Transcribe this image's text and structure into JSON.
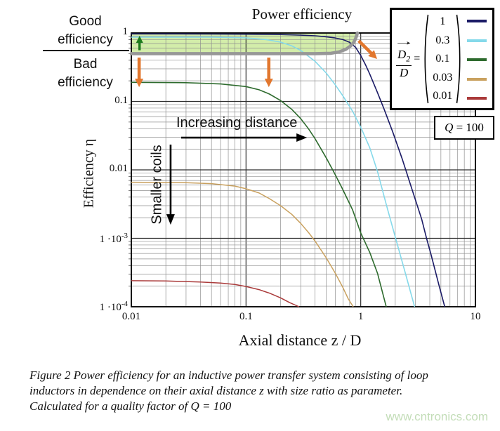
{
  "page": {
    "background": "#ffffff"
  },
  "chart_data": {
    "type": "line",
    "title": "Power efficiency",
    "xlabel": "Axial distance z / D",
    "ylabel": "Efficiency η",
    "xscale": "log",
    "yscale": "log",
    "xlim": [
      0.01,
      10
    ],
    "ylim": [
      0.0001,
      1
    ],
    "grid": true,
    "legend_position": "top-right",
    "x_ticks": [
      {
        "v": 0.01,
        "base": "0.01"
      },
      {
        "v": 0.1,
        "base": "0.1"
      },
      {
        "v": 1,
        "base": "1"
      },
      {
        "v": 10,
        "base": "10"
      }
    ],
    "y_ticks": [
      {
        "v": 1,
        "base": "1"
      },
      {
        "v": 0.1,
        "base": "0.1"
      },
      {
        "v": 0.01,
        "base": "0.01"
      },
      {
        "v": 0.001,
        "base": "1 ·10",
        "sup": "-3"
      },
      {
        "v": 0.0001,
        "base": "1 ·10",
        "sup": "-4"
      }
    ],
    "series": [
      {
        "name": "1",
        "color": "#1b1b66",
        "width": 1.6,
        "points": [
          [
            0.01,
            0.97
          ],
          [
            0.02,
            0.97
          ],
          [
            0.05,
            0.965
          ],
          [
            0.1,
            0.96
          ],
          [
            0.15,
            0.955
          ],
          [
            0.2,
            0.95
          ],
          [
            0.3,
            0.93
          ],
          [
            0.4,
            0.91
          ],
          [
            0.5,
            0.88
          ],
          [
            0.6,
            0.845
          ],
          [
            0.7,
            0.8
          ],
          [
            0.8,
            0.73
          ],
          [
            0.9,
            0.62
          ],
          [
            1.0,
            0.47
          ],
          [
            1.1,
            0.345
          ],
          [
            1.2,
            0.25
          ],
          [
            1.4,
            0.135
          ],
          [
            1.6,
            0.077
          ],
          [
            1.9,
            0.036
          ],
          [
            2.3,
            0.0145
          ],
          [
            2.8,
            0.0052
          ],
          [
            3.4,
            0.0019
          ],
          [
            3.75,
            0.001
          ],
          [
            4.1,
            0.00058
          ],
          [
            4.8,
            0.00021
          ],
          [
            5.4,
            0.0001
          ]
        ]
      },
      {
        "name": "0.3",
        "color": "#85d9ea",
        "width": 1.6,
        "points": [
          [
            0.01,
            0.87
          ],
          [
            0.05,
            0.87
          ],
          [
            0.1,
            0.85
          ],
          [
            0.15,
            0.8
          ],
          [
            0.2,
            0.735
          ],
          [
            0.25,
            0.65
          ],
          [
            0.3,
            0.555
          ],
          [
            0.4,
            0.385
          ],
          [
            0.5,
            0.26
          ],
          [
            0.6,
            0.175
          ],
          [
            0.7,
            0.12
          ],
          [
            0.85,
            0.072
          ],
          [
            1.0,
            0.042
          ],
          [
            1.2,
            0.021
          ],
          [
            1.4,
            0.0095
          ],
          [
            1.7,
            0.0028
          ],
          [
            2.0,
            0.00105
          ],
          [
            2.4,
            0.00035
          ],
          [
            2.95,
            0.0001
          ]
        ]
      },
      {
        "name": "0.1",
        "color": "#2e6b2e",
        "width": 1.6,
        "points": [
          [
            0.01,
            0.19
          ],
          [
            0.03,
            0.188
          ],
          [
            0.06,
            0.18
          ],
          [
            0.1,
            0.165
          ],
          [
            0.13,
            0.148
          ],
          [
            0.16,
            0.128
          ],
          [
            0.2,
            0.103
          ],
          [
            0.25,
            0.077
          ],
          [
            0.3,
            0.056
          ],
          [
            0.35,
            0.04
          ],
          [
            0.4,
            0.0285
          ],
          [
            0.5,
            0.015
          ],
          [
            0.6,
            0.0085
          ],
          [
            0.7,
            0.0051
          ],
          [
            0.85,
            0.0026
          ],
          [
            1.0,
            0.0012
          ],
          [
            1.2,
            0.00062
          ],
          [
            1.4,
            0.00031
          ],
          [
            1.67,
            0.0001
          ]
        ]
      },
      {
        "name": "0.03",
        "color": "#c9a15f",
        "width": 1.5,
        "points": [
          [
            0.01,
            0.0066
          ],
          [
            0.03,
            0.0065
          ],
          [
            0.05,
            0.0063
          ],
          [
            0.08,
            0.0058
          ],
          [
            0.1,
            0.0053
          ],
          [
            0.13,
            0.0046
          ],
          [
            0.16,
            0.0038
          ],
          [
            0.2,
            0.003
          ],
          [
            0.25,
            0.00225
          ],
          [
            0.3,
            0.00165
          ],
          [
            0.35,
            0.00122
          ],
          [
            0.4,
            0.00091
          ],
          [
            0.5,
            0.00052
          ],
          [
            0.6,
            0.00031
          ],
          [
            0.7,
            0.00019
          ],
          [
            0.78,
            0.00013
          ],
          [
            0.86,
            0.0001
          ]
        ]
      },
      {
        "name": "0.01",
        "color": "#aa3a3a",
        "width": 1.5,
        "points": [
          [
            0.01,
            0.00024
          ],
          [
            0.02,
            0.000238
          ],
          [
            0.04,
            0.00023
          ],
          [
            0.06,
            0.000222
          ],
          [
            0.08,
            0.000212
          ],
          [
            0.1,
            0.000198
          ],
          [
            0.13,
            0.000178
          ],
          [
            0.16,
            0.000158
          ],
          [
            0.2,
            0.000135
          ],
          [
            0.24,
            0.000115
          ],
          [
            0.29,
            0.0001
          ]
        ]
      }
    ],
    "efficiency_boundary": {
      "color": "#979797",
      "width": 4.6,
      "points": [
        [
          0.01,
          0.5
        ],
        [
          0.2,
          0.5
        ],
        [
          0.4,
          0.5
        ],
        [
          0.55,
          0.505
        ],
        [
          0.65,
          0.53
        ],
        [
          0.74,
          0.575
        ],
        [
          0.81,
          0.64
        ],
        [
          0.865,
          0.72
        ],
        [
          0.9,
          0.82
        ],
        [
          0.925,
          0.93
        ],
        [
          0.935,
          1.0
        ]
      ]
    },
    "good_region": {
      "fill": "rgba(158,216,66,0.45)"
    },
    "arrows": [
      {
        "name": "green-up-arrow",
        "color": "#1e7c1e",
        "width": 3.4,
        "head_len": 10,
        "head_w": 10,
        "from": [
          0.0118,
          0.56
        ],
        "to": [
          0.0118,
          0.91
        ]
      },
      {
        "name": "orange-down-arrow-left",
        "color": "#e2772e",
        "width": 4.6,
        "head_len": 12,
        "head_w": 12,
        "from": [
          0.0117,
          0.437
        ],
        "to": [
          0.0117,
          0.162
        ]
      },
      {
        "name": "orange-down-arrow-mid",
        "color": "#e2772e",
        "width": 4.6,
        "head_len": 12,
        "head_w": 12,
        "from": [
          0.158,
          0.437
        ],
        "to": [
          0.158,
          0.162
        ]
      },
      {
        "name": "orange-diagonal-arrow",
        "color": "#e2772e",
        "width": 4.6,
        "head_len": 12,
        "head_w": 12,
        "from": [
          0.96,
          0.77
        ],
        "to": [
          1.39,
          0.417
        ]
      },
      {
        "name": "increasing-distance-arrow",
        "color": "#000000",
        "width": 2.6,
        "head_len": 15,
        "head_w": 12,
        "from": [
          0.0272,
          0.0296
        ],
        "to": [
          0.34,
          0.0296
        ]
      },
      {
        "name": "smaller-coils-arrow",
        "color": "#000000",
        "width": 2.6,
        "head_len": 15,
        "head_w": 12,
        "from": [
          0.022,
          0.0234
        ],
        "to": [
          0.022,
          0.00158
        ]
      }
    ]
  },
  "annotations": {
    "good_line1": "Good",
    "good_line2": "efficiency",
    "bad_line1": "Bad",
    "bad_line2": "efficiency",
    "increasing_distance": "Increasing distance",
    "smaller_coils": "Smaller coils"
  },
  "legend": {
    "vector_arrow": "→",
    "ratio_numerator": "D",
    "ratio_numerator_sub": "2",
    "ratio_denominator": "D",
    "equals": "=",
    "values": [
      "1",
      "0.3",
      "0.1",
      "0.03",
      "0.01"
    ],
    "q_symbol": "Q",
    "q_rest": " = 100"
  },
  "caption": {
    "lines": [
      "Figure 2 Power efficiency for an inductive power transfer system consisting of loop",
      "inductors in dependence on their axial distance z with size ratio as parameter.",
      "Calculated for a quality factor of Q = 100"
    ]
  },
  "watermark": {
    "text": "www.cntronics.com",
    "color": "#c3ddb8"
  }
}
